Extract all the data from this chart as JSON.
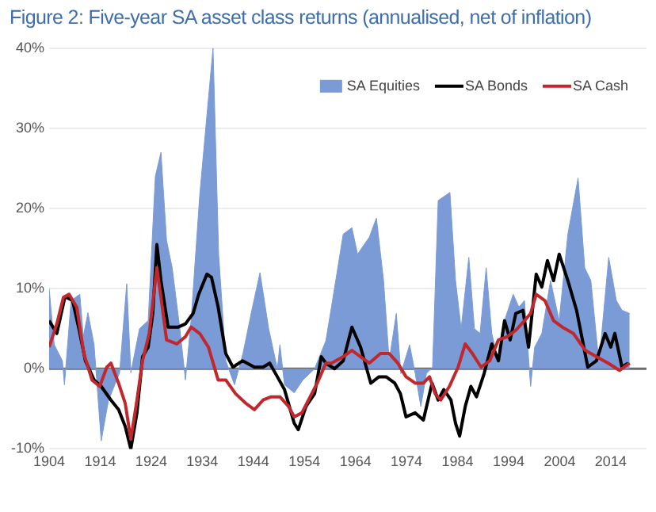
{
  "chart_data": {
    "type": "line",
    "title": "Figure 2: Five-year SA asset class returns (annualised, net of inflation)",
    "xlim": [
      1904,
      2021
    ],
    "xticks": [
      1904,
      1914,
      1924,
      1934,
      1944,
      1954,
      1964,
      1974,
      1984,
      1994,
      2004,
      2014
    ],
    "ylim": [
      -10,
      40
    ],
    "yticks": [
      {
        "value": -10,
        "label": "-10%"
      },
      {
        "value": 0,
        "label": "0%"
      },
      {
        "value": 10,
        "label": "10%"
      },
      {
        "value": 20,
        "label": "20%"
      },
      {
        "value": 30,
        "label": "30%"
      },
      {
        "value": 40,
        "label": "40%"
      }
    ],
    "grid": "y",
    "legend": "top right",
    "marker": "none",
    "series": [
      {
        "name": "SA Equities",
        "type": "area",
        "color": "#7b9bd6",
        "x": [
          1904,
          1905,
          1906.6,
          1907,
          1908.3,
          1910,
          1910.7,
          1911.6,
          1912.8,
          1914.2,
          1915.6,
          1917.8,
          1919.2,
          1920,
          1921.7,
          1923.4,
          1924.8,
          1925.9,
          1927,
          1928.1,
          1929.6,
          1930.7,
          1931.8,
          1933.5,
          1934.9,
          1936.1,
          1937.2,
          1938.6,
          1940.3,
          1942,
          1943.6,
          1945.3,
          1947,
          1948.7,
          1949.2,
          1950.1,
          1952,
          1953.7,
          1956,
          1958.2,
          1959.3,
          1961.6,
          1963.3,
          1964.4,
          1966.7,
          1968.1,
          1969.5,
          1970.6,
          1972,
          1972.9,
          1974.6,
          1975.7,
          1976.8,
          1977.9,
          1979.1,
          1980.2,
          1982.5,
          1983.6,
          1984.7,
          1986.2,
          1987.3,
          1988.4,
          1989.6,
          1990.7,
          1992,
          1993.2,
          1994.9,
          1996,
          1997.1,
          1998.3,
          1999.1,
          2000.5,
          2002.2,
          2003.9,
          2005.6,
          2007.6,
          2008.9,
          2010.1,
          2011.7,
          2013.6,
          2015.1,
          2016.2,
          2017.7
        ],
        "values": [
          10,
          3,
          1,
          -2,
          8.5,
          9.3,
          4,
          7,
          3,
          -9,
          -4,
          -0.5,
          10.6,
          -0.5,
          5,
          6,
          24,
          27,
          16,
          12.6,
          5,
          -1.4,
          6,
          21.7,
          31.6,
          40,
          14.3,
          1,
          -2,
          2,
          7,
          12,
          5,
          0,
          3,
          -2,
          -3,
          -1.4,
          0,
          3.5,
          7.7,
          16.8,
          17.6,
          14.3,
          16.4,
          18.8,
          11,
          1,
          6.9,
          -0.6,
          3,
          -0.6,
          -4.7,
          -0.6,
          0.2,
          21,
          22,
          11,
          5,
          13.9,
          5,
          4.4,
          12.6,
          4.4,
          1,
          6,
          9.3,
          7.7,
          8.5,
          -2.2,
          2.7,
          4.4,
          11,
          6,
          16.8,
          23.8,
          12.6,
          11,
          0.7,
          13.9,
          8.5,
          7.3,
          6.9
        ]
      },
      {
        "name": "SA Bonds",
        "color": "#000000",
        "x": [
          1904,
          1905.5,
          1907.1,
          1908.6,
          1909.9,
          1911.1,
          1912.8,
          1914.2,
          1916.1,
          1917.6,
          1918.9,
          1920,
          1921.2,
          1922.3,
          1923.4,
          1924.3,
          1925.1,
          1925.9,
          1927.3,
          1929.3,
          1930.7,
          1932.2,
          1933.3,
          1934.9,
          1935.8,
          1937.1,
          1938.6,
          1940,
          1941.9,
          1944.2,
          1945.9,
          1947.2,
          1948.7,
          1950.1,
          1952,
          1952.8,
          1954.3,
          1956,
          1957.3,
          1958.2,
          1959.9,
          1961.6,
          1963.3,
          1965,
          1967,
          1968.6,
          1970,
          1971.7,
          1972.8,
          1973.9,
          1975.7,
          1977.3,
          1979,
          1980.2,
          1981.3,
          1982.7,
          1983.6,
          1984.4,
          1985.5,
          1986.6,
          1987.7,
          1989.2,
          1990.7,
          1992,
          1993.2,
          1994.3,
          1995.4,
          1996.8,
          1997.9,
          1999.4,
          2000.5,
          2001.6,
          2002.8,
          2003.9,
          2005.6,
          2007.3,
          2009.5,
          2011.2,
          2012.9,
          2014,
          2014.8,
          2016.2,
          2017.4
        ],
        "values": [
          6,
          4.4,
          9,
          8.5,
          4.8,
          1,
          -1.4,
          -2.2,
          -3.9,
          -5.1,
          -7.2,
          -10,
          -5.5,
          1.5,
          2.7,
          6.9,
          15.5,
          11,
          5.2,
          5.2,
          5.6,
          6.9,
          9.3,
          11.8,
          11.4,
          7.7,
          1.9,
          0.2,
          1,
          0.2,
          0.2,
          0.7,
          -1,
          -2.6,
          -6.8,
          -7.6,
          -4.7,
          -3.1,
          1.5,
          0.7,
          0,
          1,
          5.2,
          2.7,
          -1.8,
          -1,
          -1,
          -1.8,
          -3.1,
          -6,
          -5.5,
          -6.4,
          -1.8,
          -3.9,
          -2.6,
          -3.9,
          -6.8,
          -8.4,
          -4.7,
          -2.2,
          -3.5,
          -0.6,
          3.1,
          1,
          6,
          3.6,
          6.9,
          7.3,
          2.7,
          11.8,
          10.2,
          13.5,
          11,
          14.3,
          11,
          7.3,
          0.2,
          1,
          4.4,
          2.7,
          4.4,
          0.2,
          0.7
        ]
      },
      {
        "name": "SA Cash",
        "color": "#c0282d",
        "x": [
          1904,
          1905.5,
          1906.8,
          1907.9,
          1909.4,
          1910.8,
          1912.4,
          1913.9,
          1915.3,
          1916.1,
          1917.6,
          1918.9,
          1920,
          1921.2,
          1922.3,
          1923.6,
          1924.5,
          1925.1,
          1925.9,
          1927,
          1929,
          1930.7,
          1931.8,
          1933.5,
          1935.2,
          1937.1,
          1938.6,
          1940.5,
          1942.5,
          1944.2,
          1945.9,
          1947.5,
          1949.2,
          1950.9,
          1952,
          1953.5,
          1954.8,
          1956.5,
          1958.2,
          1959.3,
          1961.6,
          1963.3,
          1965,
          1966.7,
          1968.9,
          1970.6,
          1972.3,
          1973.9,
          1975.7,
          1977.3,
          1978.5,
          1979.6,
          1980.7,
          1982.4,
          1984.1,
          1985.5,
          1986.9,
          1988.6,
          1990.3,
          1992,
          1993.7,
          1995.4,
          1997.1,
          1998.3,
          1999.4,
          2001.1,
          2002.8,
          2004.5,
          2006.7,
          2009,
          2011.2,
          2013.5,
          2015.7,
          2017.7
        ],
        "values": [
          2.7,
          5.6,
          8.9,
          9.3,
          7.7,
          1.9,
          -1.4,
          -2.2,
          0.2,
          0.7,
          -1.8,
          -4.3,
          -8.8,
          -3.9,
          1,
          4.4,
          9.3,
          12.6,
          8.9,
          3.6,
          3.1,
          4,
          5.2,
          4.4,
          2.7,
          -1.4,
          -1.4,
          -3.1,
          -4.3,
          -5.1,
          -3.9,
          -3.5,
          -3.5,
          -4.7,
          -6,
          -5.5,
          -3.9,
          -1.8,
          0.7,
          0.7,
          1.5,
          2.3,
          1.5,
          0.7,
          1.9,
          1.9,
          0.7,
          -1,
          -1.8,
          -1.8,
          -1,
          -3.1,
          -3.9,
          -2.2,
          0.2,
          3.1,
          1.9,
          0.2,
          1,
          3.6,
          4,
          4.8,
          6,
          6.9,
          9.3,
          8.5,
          6,
          5.2,
          4.4,
          2.3,
          1.5,
          0.7,
          -0.2,
          0.7
        ]
      }
    ]
  }
}
